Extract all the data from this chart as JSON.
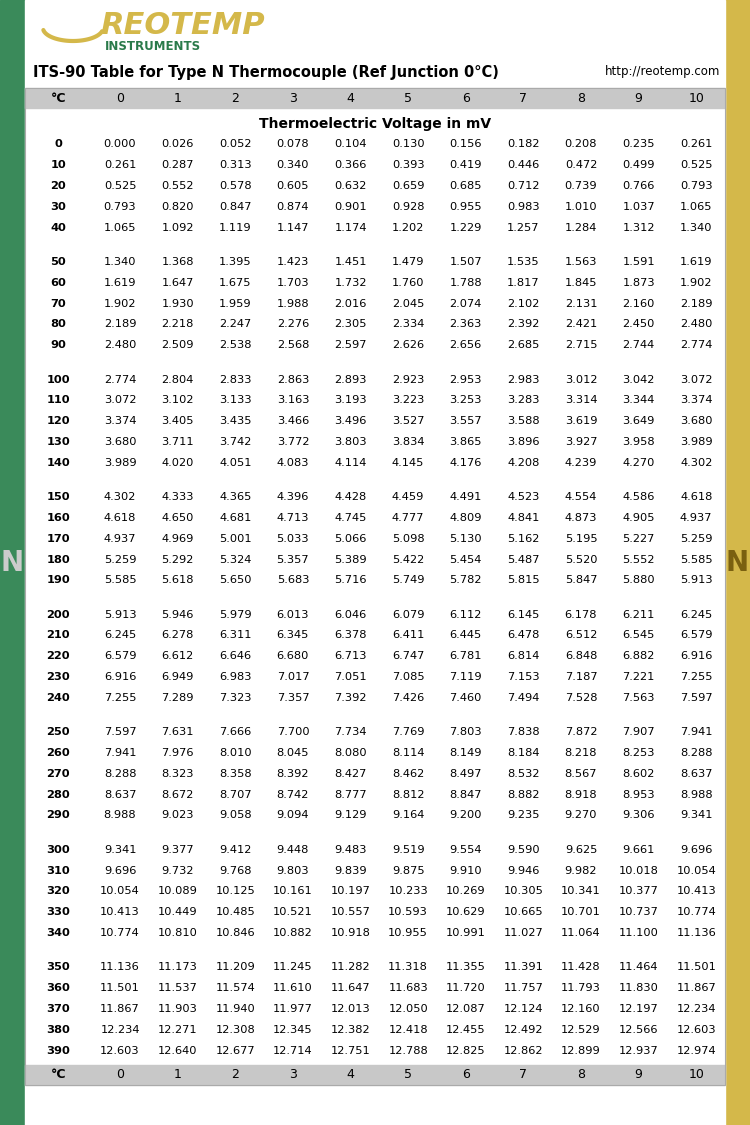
{
  "title": "ITS-90 Table for Type N Thermocouple (Ref Junction 0°C)",
  "url": "http://reotemp.com",
  "subtitle": "Thermoelectric Voltage in mV",
  "col_headers": [
    "°C",
    "0",
    "1",
    "2",
    "3",
    "4",
    "5",
    "6",
    "7",
    "8",
    "9",
    "10"
  ],
  "table_data": [
    [
      0,
      0.0,
      0.026,
      0.052,
      0.078,
      0.104,
      0.13,
      0.156,
      0.182,
      0.208,
      0.235,
      0.261
    ],
    [
      10,
      0.261,
      0.287,
      0.313,
      0.34,
      0.366,
      0.393,
      0.419,
      0.446,
      0.472,
      0.499,
      0.525
    ],
    [
      20,
      0.525,
      0.552,
      0.578,
      0.605,
      0.632,
      0.659,
      0.685,
      0.712,
      0.739,
      0.766,
      0.793
    ],
    [
      30,
      0.793,
      0.82,
      0.847,
      0.874,
      0.901,
      0.928,
      0.955,
      0.983,
      1.01,
      1.037,
      1.065
    ],
    [
      40,
      1.065,
      1.092,
      1.119,
      1.147,
      1.174,
      1.202,
      1.229,
      1.257,
      1.284,
      1.312,
      1.34
    ],
    [
      50,
      1.34,
      1.368,
      1.395,
      1.423,
      1.451,
      1.479,
      1.507,
      1.535,
      1.563,
      1.591,
      1.619
    ],
    [
      60,
      1.619,
      1.647,
      1.675,
      1.703,
      1.732,
      1.76,
      1.788,
      1.817,
      1.845,
      1.873,
      1.902
    ],
    [
      70,
      1.902,
      1.93,
      1.959,
      1.988,
      2.016,
      2.045,
      2.074,
      2.102,
      2.131,
      2.16,
      2.189
    ],
    [
      80,
      2.189,
      2.218,
      2.247,
      2.276,
      2.305,
      2.334,
      2.363,
      2.392,
      2.421,
      2.45,
      2.48
    ],
    [
      90,
      2.48,
      2.509,
      2.538,
      2.568,
      2.597,
      2.626,
      2.656,
      2.685,
      2.715,
      2.744,
      2.774
    ],
    [
      100,
      2.774,
      2.804,
      2.833,
      2.863,
      2.893,
      2.923,
      2.953,
      2.983,
      3.012,
      3.042,
      3.072
    ],
    [
      110,
      3.072,
      3.102,
      3.133,
      3.163,
      3.193,
      3.223,
      3.253,
      3.283,
      3.314,
      3.344,
      3.374
    ],
    [
      120,
      3.374,
      3.405,
      3.435,
      3.466,
      3.496,
      3.527,
      3.557,
      3.588,
      3.619,
      3.649,
      3.68
    ],
    [
      130,
      3.68,
      3.711,
      3.742,
      3.772,
      3.803,
      3.834,
      3.865,
      3.896,
      3.927,
      3.958,
      3.989
    ],
    [
      140,
      3.989,
      4.02,
      4.051,
      4.083,
      4.114,
      4.145,
      4.176,
      4.208,
      4.239,
      4.27,
      4.302
    ],
    [
      150,
      4.302,
      4.333,
      4.365,
      4.396,
      4.428,
      4.459,
      4.491,
      4.523,
      4.554,
      4.586,
      4.618
    ],
    [
      160,
      4.618,
      4.65,
      4.681,
      4.713,
      4.745,
      4.777,
      4.809,
      4.841,
      4.873,
      4.905,
      4.937
    ],
    [
      170,
      4.937,
      4.969,
      5.001,
      5.033,
      5.066,
      5.098,
      5.13,
      5.162,
      5.195,
      5.227,
      5.259
    ],
    [
      180,
      5.259,
      5.292,
      5.324,
      5.357,
      5.389,
      5.422,
      5.454,
      5.487,
      5.52,
      5.552,
      5.585
    ],
    [
      190,
      5.585,
      5.618,
      5.65,
      5.683,
      5.716,
      5.749,
      5.782,
      5.815,
      5.847,
      5.88,
      5.913
    ],
    [
      200,
      5.913,
      5.946,
      5.979,
      6.013,
      6.046,
      6.079,
      6.112,
      6.145,
      6.178,
      6.211,
      6.245
    ],
    [
      210,
      6.245,
      6.278,
      6.311,
      6.345,
      6.378,
      6.411,
      6.445,
      6.478,
      6.512,
      6.545,
      6.579
    ],
    [
      220,
      6.579,
      6.612,
      6.646,
      6.68,
      6.713,
      6.747,
      6.781,
      6.814,
      6.848,
      6.882,
      6.916
    ],
    [
      230,
      6.916,
      6.949,
      6.983,
      7.017,
      7.051,
      7.085,
      7.119,
      7.153,
      7.187,
      7.221,
      7.255
    ],
    [
      240,
      7.255,
      7.289,
      7.323,
      7.357,
      7.392,
      7.426,
      7.46,
      7.494,
      7.528,
      7.563,
      7.597
    ],
    [
      250,
      7.597,
      7.631,
      7.666,
      7.7,
      7.734,
      7.769,
      7.803,
      7.838,
      7.872,
      7.907,
      7.941
    ],
    [
      260,
      7.941,
      7.976,
      8.01,
      8.045,
      8.08,
      8.114,
      8.149,
      8.184,
      8.218,
      8.253,
      8.288
    ],
    [
      270,
      8.288,
      8.323,
      8.358,
      8.392,
      8.427,
      8.462,
      8.497,
      8.532,
      8.567,
      8.602,
      8.637
    ],
    [
      280,
      8.637,
      8.672,
      8.707,
      8.742,
      8.777,
      8.812,
      8.847,
      8.882,
      8.918,
      8.953,
      8.988
    ],
    [
      290,
      8.988,
      9.023,
      9.058,
      9.094,
      9.129,
      9.164,
      9.2,
      9.235,
      9.27,
      9.306,
      9.341
    ],
    [
      300,
      9.341,
      9.377,
      9.412,
      9.448,
      9.483,
      9.519,
      9.554,
      9.59,
      9.625,
      9.661,
      9.696
    ],
    [
      310,
      9.696,
      9.732,
      9.768,
      9.803,
      9.839,
      9.875,
      9.91,
      9.946,
      9.982,
      10.018,
      10.054
    ],
    [
      320,
      10.054,
      10.089,
      10.125,
      10.161,
      10.197,
      10.233,
      10.269,
      10.305,
      10.341,
      10.377,
      10.413
    ],
    [
      330,
      10.413,
      10.449,
      10.485,
      10.521,
      10.557,
      10.593,
      10.629,
      10.665,
      10.701,
      10.737,
      10.774
    ],
    [
      340,
      10.774,
      10.81,
      10.846,
      10.882,
      10.918,
      10.955,
      10.991,
      11.027,
      11.064,
      11.1,
      11.136
    ],
    [
      350,
      11.136,
      11.173,
      11.209,
      11.245,
      11.282,
      11.318,
      11.355,
      11.391,
      11.428,
      11.464,
      11.501
    ],
    [
      360,
      11.501,
      11.537,
      11.574,
      11.61,
      11.647,
      11.683,
      11.72,
      11.757,
      11.793,
      11.83,
      11.867
    ],
    [
      370,
      11.867,
      11.903,
      11.94,
      11.977,
      12.013,
      12.05,
      12.087,
      12.124,
      12.16,
      12.197,
      12.234
    ],
    [
      380,
      12.234,
      12.271,
      12.308,
      12.345,
      12.382,
      12.418,
      12.455,
      12.492,
      12.529,
      12.566,
      12.603
    ],
    [
      390,
      12.603,
      12.64,
      12.677,
      12.714,
      12.751,
      12.788,
      12.825,
      12.862,
      12.899,
      12.937,
      12.974
    ]
  ],
  "header_bg": "#c8c8c8",
  "left_bar_color": "#3a8a5a",
  "right_bar_color": "#d4b84a",
  "logo_color_yellow": "#d4b84a",
  "logo_color_green": "#2a7a4a",
  "bg_color": "#ffffff",
  "row_fontsize": 8.2,
  "header_fontsize": 9.0,
  "title_fontsize": 10.5,
  "subtitle_fontsize": 10.0
}
